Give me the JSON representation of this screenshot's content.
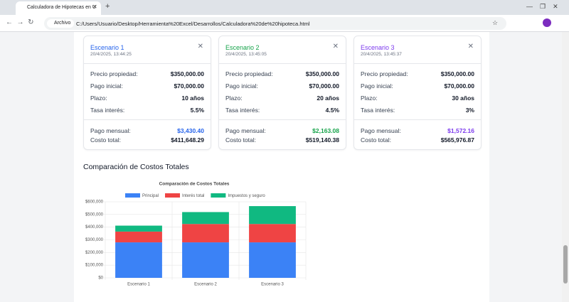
{
  "browser": {
    "tab_title": "Calculadora de Hipotecas en U",
    "url_label": "Archivo",
    "url": "C:/Users/Usuario/Desktop/Herramienta%20Excel/Desarrollos/Calculadora%20de%20hipoteca.html"
  },
  "scenarios": [
    {
      "name": "Escenario 1",
      "color": "#2563eb",
      "date": "20/4/2025, 13:44:25",
      "rows": [
        {
          "label": "Precio propiedad:",
          "value": "$350,000.00"
        },
        {
          "label": "Pago inicial:",
          "value": "$70,000.00"
        },
        {
          "label": "Plazo:",
          "value": "10 años"
        },
        {
          "label": "Tasa interés:",
          "value": "5.5%"
        }
      ],
      "monthly_label": "Pago mensual:",
      "monthly": "$3,430.40",
      "total_label": "Costo total:",
      "total": "$411,648.29"
    },
    {
      "name": "Escenario 2",
      "color": "#16a34a",
      "date": "20/4/2025, 13:45:05",
      "rows": [
        {
          "label": "Precio propiedad:",
          "value": "$350,000.00"
        },
        {
          "label": "Pago inicial:",
          "value": "$70,000.00"
        },
        {
          "label": "Plazo:",
          "value": "20 años"
        },
        {
          "label": "Tasa interés:",
          "value": "4.5%"
        }
      ],
      "monthly_label": "Pago mensual:",
      "monthly": "$2,163.08",
      "total_label": "Costo total:",
      "total": "$519,140.38"
    },
    {
      "name": "Escenario 3",
      "color": "#7c3aed",
      "date": "20/4/2025, 13:45:37",
      "rows": [
        {
          "label": "Precio propiedad:",
          "value": "$350,000.00"
        },
        {
          "label": "Pago inicial:",
          "value": "$70,000.00"
        },
        {
          "label": "Plazo:",
          "value": "30 años"
        },
        {
          "label": "Tasa interés:",
          "value": "3%"
        }
      ],
      "monthly_label": "Pago mensual:",
      "monthly": "$1,572.16",
      "total_label": "Costo total:",
      "total": "$565,976.87"
    }
  ],
  "section_title": "Comparación de Costos Totales",
  "chart_data": {
    "type": "stacked_bar",
    "title": "Comparación de Costos Totales",
    "categories": [
      "Escenario 1",
      "Escenario 2",
      "Escenario 3"
    ],
    "series": [
      {
        "name": "Principal",
        "color": "#3b82f6",
        "values": [
          280000,
          280000,
          280000
        ]
      },
      {
        "name": "Interés total",
        "color": "#ef4444",
        "values": [
          85000,
          145000,
          145000
        ]
      },
      {
        "name": "Impuestos y seguro",
        "color": "#10b981",
        "values": [
          47000,
          94000,
          141000
        ]
      }
    ],
    "ylim": [
      0,
      600000
    ],
    "yticks": [
      {
        "value": 0,
        "label": "$0"
      },
      {
        "value": 100000,
        "label": "$100,000"
      },
      {
        "value": 200000,
        "label": "$200,000"
      },
      {
        "value": 300000,
        "label": "$300,000"
      },
      {
        "value": 400000,
        "label": "$400,000"
      },
      {
        "value": 500000,
        "label": "$500,000"
      },
      {
        "value": 600000,
        "label": "$600,000"
      }
    ],
    "grid": true,
    "legend": "top"
  }
}
